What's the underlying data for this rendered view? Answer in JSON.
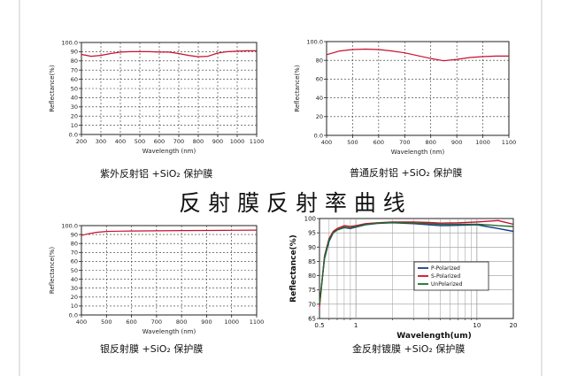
{
  "banner": "反 射 膜 反 射 率 曲 线",
  "chart_data": [
    {
      "type": "line",
      "caption": "紫外反射铝 +SiO₂ 保护膜",
      "xlabel": "Wavelength (nm)",
      "ylabel": "Reflectance(%)",
      "xlim": [
        200,
        1100
      ],
      "ylim": [
        0,
        100
      ],
      "xticks": [
        200,
        300,
        400,
        500,
        600,
        700,
        800,
        900,
        1000,
        1100
      ],
      "yticks": [
        "0.0",
        "10",
        "20",
        "30",
        "40",
        "50",
        "60",
        "70",
        "80",
        "90",
        "100.0"
      ],
      "grid": true,
      "series": [
        {
          "color": "#c8102e",
          "x": [
            200,
            250,
            300,
            350,
            400,
            450,
            500,
            550,
            600,
            650,
            700,
            750,
            800,
            850,
            900,
            950,
            1000,
            1050,
            1100
          ],
          "y": [
            87,
            85,
            86,
            88,
            89.5,
            90,
            90,
            90,
            89.5,
            89.5,
            88,
            86,
            84.5,
            85,
            88.5,
            90,
            90.5,
            91,
            91
          ]
        }
      ]
    },
    {
      "type": "line",
      "caption": "普通反射铝 +SiO₂ 保护膜",
      "xlabel": "Wavelength (nm)",
      "ylabel": "Reflectance(%)",
      "xlim": [
        400,
        1100
      ],
      "ylim": [
        0,
        100
      ],
      "xticks": [
        400,
        500,
        600,
        700,
        800,
        900,
        1000,
        1100
      ],
      "yticks": [
        "0.0",
        "20",
        "40",
        "60",
        "80",
        "100.0"
      ],
      "grid": true,
      "series": [
        {
          "color": "#c8102e",
          "x": [
            400,
            450,
            500,
            550,
            600,
            650,
            700,
            750,
            800,
            850,
            900,
            950,
            1000,
            1050,
            1100
          ],
          "y": [
            86,
            90,
            91.5,
            92,
            91.5,
            90,
            88,
            85,
            82,
            79.5,
            81,
            83,
            84,
            84.5,
            84.5
          ]
        }
      ]
    },
    {
      "type": "line",
      "caption": "银反射膜 +SiO₂ 保护膜",
      "xlabel": "Wavelength (nm)",
      "ylabel": "Reflectance(%)",
      "xlim": [
        400,
        1100
      ],
      "ylim": [
        0,
        100
      ],
      "xticks": [
        400,
        500,
        600,
        700,
        800,
        900,
        1000,
        1100
      ],
      "yticks": [
        "0.0",
        "10",
        "20",
        "30",
        "40",
        "50",
        "60",
        "70",
        "80",
        "90",
        "100.0"
      ],
      "grid": true,
      "series": [
        {
          "color": "#c8102e",
          "x": [
            400,
            430,
            460,
            500,
            550,
            600,
            700,
            800,
            900,
            1000,
            1100
          ],
          "y": [
            89,
            91,
            92.5,
            93.5,
            93.8,
            94,
            94.2,
            94.5,
            94.6,
            94.8,
            95
          ]
        }
      ]
    },
    {
      "type": "line",
      "caption": "金反射镀膜 +SiO₂ 保护膜",
      "xlabel": "Wavelength(um)",
      "ylabel": "Reflectance(%)",
      "xscale": "log",
      "xlim": [
        0.5,
        20
      ],
      "ylim": [
        65,
        100
      ],
      "xticks": [
        {
          "v": 0.5,
          "label": "0.5"
        },
        {
          "v": 1,
          "label": "1"
        },
        {
          "v": 10,
          "label": "10"
        },
        {
          "v": 20,
          "label": "20"
        }
      ],
      "yticks": [
        65,
        70,
        75,
        80,
        85,
        90,
        95,
        100
      ],
      "grid": true,
      "legend": "center-right",
      "series": [
        {
          "name": "P-Polarized",
          "color": "#1a3a8c",
          "x": [
            0.5,
            0.55,
            0.6,
            0.65,
            0.7,
            0.8,
            0.9,
            1.0,
            1.2,
            1.5,
            2,
            3,
            4,
            5,
            7,
            10,
            12,
            15,
            20
          ],
          "y": [
            70,
            86,
            92,
            95,
            96,
            96.8,
            96.5,
            97,
            97.8,
            98.3,
            98.5,
            98.2,
            97.8,
            97.5,
            97.6,
            97.8,
            97.2,
            96.5,
            95.5
          ]
        },
        {
          "name": "S-Polarized",
          "color": "#c8102e",
          "x": [
            0.5,
            0.55,
            0.6,
            0.65,
            0.7,
            0.8,
            0.9,
            1.0,
            1.2,
            1.5,
            2,
            3,
            4,
            5,
            7,
            10,
            12,
            15,
            20
          ],
          "y": [
            69,
            87,
            93,
            95.5,
            96.5,
            97.5,
            97.2,
            97.5,
            98.2,
            98.5,
            98.8,
            98.8,
            98.6,
            98.4,
            98.5,
            98.8,
            99,
            99.3,
            98
          ]
        },
        {
          "name": "UnPolarized",
          "color": "#1f6b2c",
          "x": [
            0.5,
            0.55,
            0.6,
            0.65,
            0.7,
            0.8,
            0.9,
            1.0,
            1.2,
            1.5,
            2,
            3,
            4,
            5,
            7,
            10,
            12,
            15,
            20
          ],
          "y": [
            70,
            86.5,
            92.5,
            95,
            96,
            97,
            96.7,
            97.2,
            97.9,
            98.4,
            98.6,
            98.4,
            98.2,
            98,
            98,
            98,
            97.8,
            97.5,
            97.2
          ]
        }
      ]
    }
  ]
}
